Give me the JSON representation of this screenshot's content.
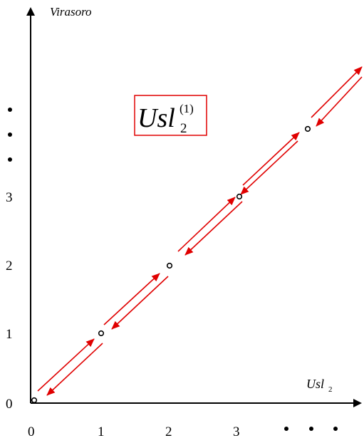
{
  "diagram": {
    "y_axis_label": "Virasoro",
    "x_axis_label": {
      "main": "Usl",
      "sub": "2"
    },
    "boxed_label": {
      "main": "Usl",
      "sub": "2",
      "sup": "(1)"
    },
    "x_ticks": [
      "0",
      "1",
      "2",
      "3"
    ],
    "y_ticks": [
      "0",
      "1",
      "2",
      "3"
    ],
    "arrow_color": "#e00000",
    "box_color": "#e00000",
    "axis_color": "#000000"
  }
}
